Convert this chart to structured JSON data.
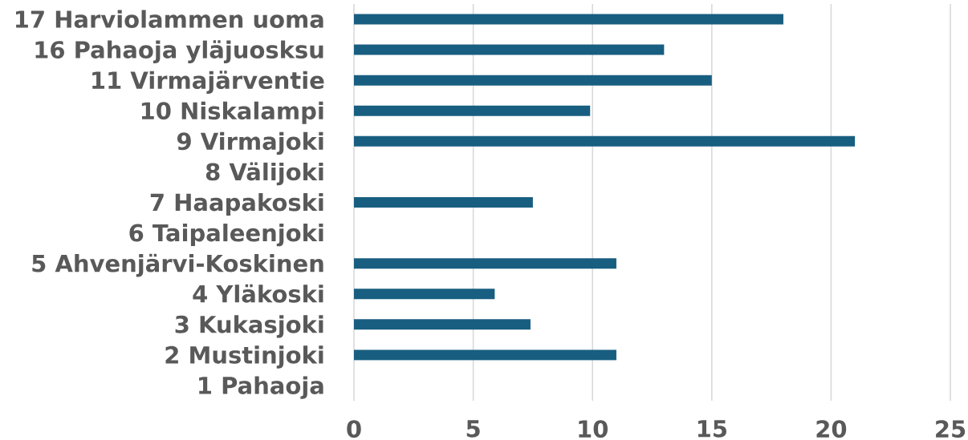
{
  "chart_data": {
    "type": "bar",
    "orientation": "horizontal",
    "categories": [
      "17 Harviolammen uoma",
      "16 Pahaoja yläjuosksu",
      "11 Virmajärventie",
      "10 Niskalampi",
      "9 Virmajoki",
      "8 Välijoki",
      "7 Haapakoski",
      "6 Taipaleenjoki",
      "5 Ahvenjärvi-Koskinen",
      "4 Yläkoski",
      "3 Kukasjoki",
      "2 Mustinjoki",
      "1 Pahaoja"
    ],
    "values": [
      18,
      13,
      15,
      9.9,
      21,
      null,
      7.5,
      null,
      11,
      5.9,
      7.4,
      11,
      null
    ],
    "color": "#185e80",
    "xlim": [
      0,
      25
    ],
    "xticks": [
      0,
      5,
      10,
      15,
      20,
      25
    ],
    "grid": "x"
  }
}
